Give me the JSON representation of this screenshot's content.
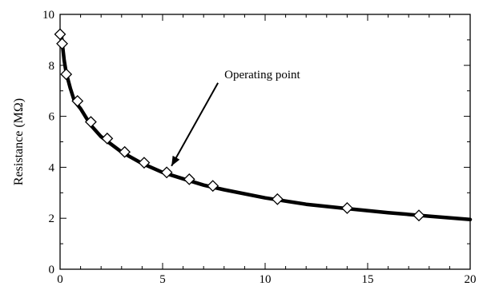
{
  "chart_data": {
    "type": "line",
    "title": "",
    "xlabel": "",
    "ylabel": "Resistance (MΩ)",
    "xlim": [
      0,
      20
    ],
    "ylim": [
      0,
      10
    ],
    "xticks": [
      0,
      5,
      10,
      15,
      20
    ],
    "yticks": [
      0,
      2,
      4,
      6,
      8,
      10
    ],
    "grid": false,
    "legend": "none",
    "colors": {
      "line": "#000000",
      "marker_fill": "#ffffff",
      "marker_stroke": "#000000"
    },
    "curve": {
      "x": [
        0.05,
        0.1,
        0.2,
        0.3,
        0.5,
        0.7,
        1.0,
        1.5,
        2.0,
        3.0,
        4.0,
        5.0,
        6.0,
        7.0,
        8.0,
        10.0,
        12.0,
        14.0,
        16.0,
        18.0,
        20.0
      ],
      "y": [
        9.3,
        8.9,
        8.2,
        7.7,
        7.1,
        6.6,
        6.3,
        5.65,
        5.2,
        4.6,
        4.15,
        3.8,
        3.55,
        3.3,
        3.12,
        2.8,
        2.55,
        2.38,
        2.22,
        2.08,
        1.95
      ]
    },
    "markers": {
      "x": [
        0.0,
        0.1,
        0.3,
        0.85,
        1.5,
        2.3,
        3.15,
        4.1,
        5.2,
        6.3,
        7.45,
        10.6,
        14.0,
        17.5
      ],
      "y": [
        9.22,
        8.85,
        7.65,
        6.6,
        5.78,
        5.13,
        4.6,
        4.18,
        3.8,
        3.53,
        3.27,
        2.75,
        2.4,
        2.11
      ]
    },
    "annotations": [
      {
        "text": "Operating point",
        "x": 5.2,
        "y": 3.8
      }
    ]
  }
}
